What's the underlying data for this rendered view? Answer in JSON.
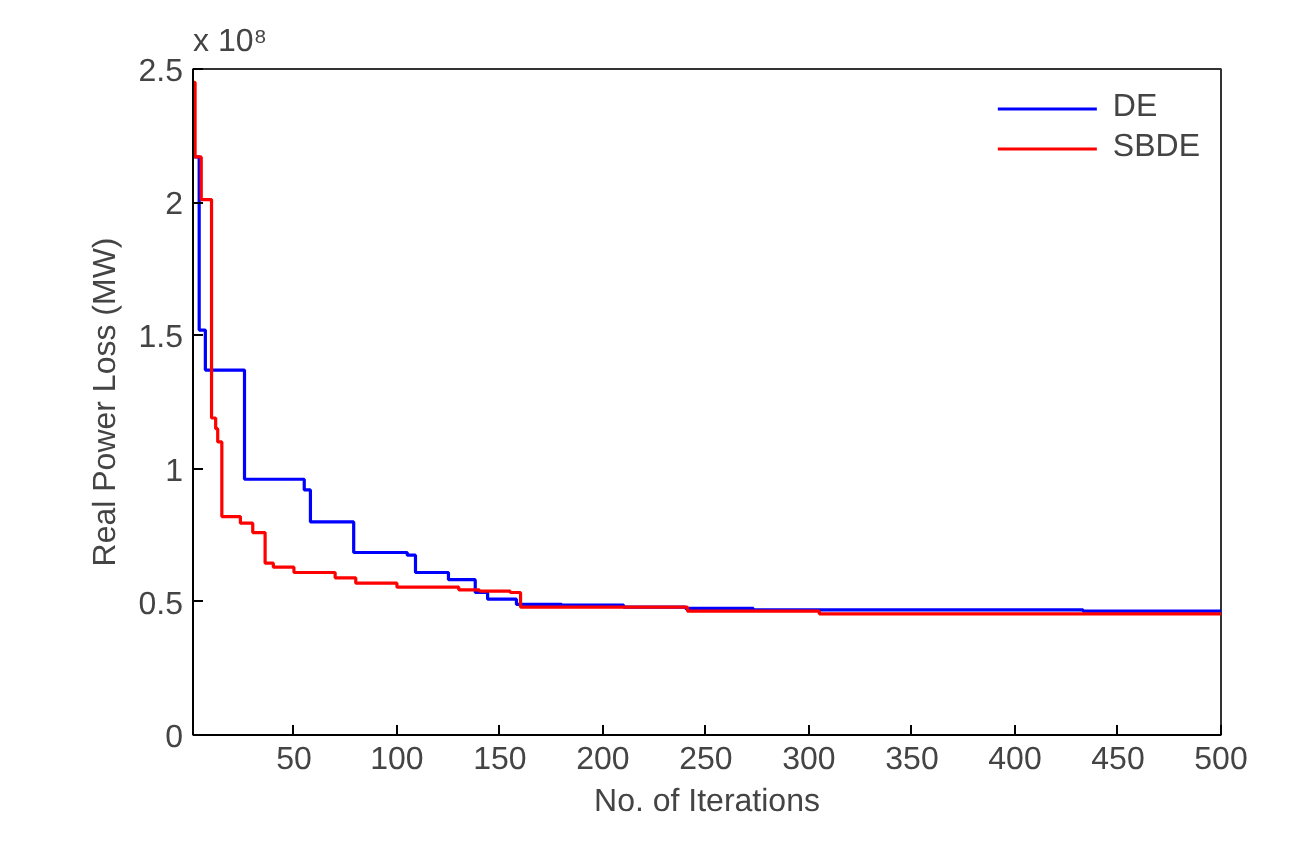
{
  "chart_data": {
    "type": "step",
    "xlabel": "No. of Iterations",
    "ylabel": "Real Power Loss (MW)",
    "annotations": [
      "x 10⁸"
    ],
    "xlim": [
      1,
      500
    ],
    "xticks": [
      50,
      100,
      150,
      200,
      250,
      300,
      350,
      400,
      450,
      500
    ],
    "ylim": [
      0,
      2.5
    ],
    "yticks": [
      0,
      0.5,
      1,
      1.5,
      2,
      2.5
    ],
    "grid": false,
    "legend": "top right",
    "marker": "none",
    "line_style": "solid",
    "series": [
      {
        "name": "DE",
        "color": "#0000ff",
        "x": [
          1,
          4,
          7,
          26,
          55,
          58,
          79,
          105,
          109,
          125,
          138,
          144,
          158,
          180,
          210,
          240,
          273,
          433,
          500
        ],
        "values": [
          2.17,
          1.52,
          1.37,
          0.96,
          0.92,
          0.8,
          0.685,
          0.675,
          0.61,
          0.583,
          0.535,
          0.51,
          0.49,
          0.488,
          0.48,
          0.475,
          0.47,
          0.465,
          0.465
        ]
      },
      {
        "name": "SBDE",
        "color": "#ff0000",
        "x": [
          1,
          2,
          5,
          10,
          12,
          13,
          15,
          24,
          30,
          36,
          40,
          50,
          70,
          80,
          100,
          130,
          140,
          155,
          160,
          241,
          305,
          500
        ],
        "values": [
          2.45,
          2.17,
          2.01,
          1.19,
          1.15,
          1.1,
          0.82,
          0.795,
          0.76,
          0.645,
          0.63,
          0.61,
          0.59,
          0.57,
          0.555,
          0.545,
          0.54,
          0.535,
          0.48,
          0.465,
          0.455,
          0.455
        ]
      }
    ]
  }
}
